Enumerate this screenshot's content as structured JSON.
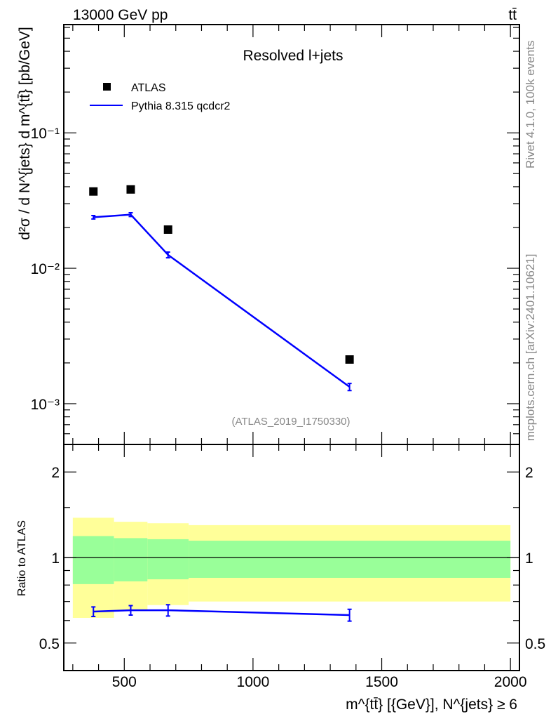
{
  "header": {
    "left": "13000 GeV pp",
    "right": "tt̄"
  },
  "side_text": {
    "rivet": "Rivet 4.1.0,  100k events",
    "mcplots": "mcplots.cern.ch [arXiv:2401.10621]"
  },
  "colors": {
    "data": "#000000",
    "mc": "#0000ff",
    "band_inner": "#99ff99",
    "band_outer": "#ffff99",
    "gray": "#888888"
  },
  "chart_data": [
    {
      "type": "scatter",
      "title": "Resolved l+jets",
      "analysis_id": "(ATLAS_2019_I1750330)",
      "ylabel": "d²σ / d N^{jets} d m^{tt̄} [pb/GeV]",
      "yscale": "log",
      "ylim": [
        0.0005,
        0.63
      ],
      "xlim": [
        265,
        2035
      ],
      "ytick_labels": [
        {
          "value": 0.1,
          "label": "10⁻¹"
        },
        {
          "value": 0.01,
          "label": "10⁻²"
        },
        {
          "value": 0.001,
          "label": "10⁻³"
        }
      ],
      "legend": {
        "placement": "top-left",
        "entries": [
          "ATLAS",
          "Pythia 8.315 qcdcr2"
        ]
      },
      "bins": [
        [
          300,
          460
        ],
        [
          460,
          590
        ],
        [
          590,
          750
        ],
        [
          750,
          2000
        ]
      ],
      "series": [
        {
          "name": "ATLAS",
          "style": "marker",
          "x": [
            380,
            525,
            670,
            1375
          ],
          "y": [
            0.0369,
            0.0382,
            0.0193,
            0.00212
          ]
        },
        {
          "name": "Pythia 8.315 qcdcr2",
          "style": "line",
          "x": [
            380,
            525,
            670,
            1375
          ],
          "y": [
            0.0238,
            0.0249,
            0.01256,
            0.00133
          ],
          "yerr": [
            0.0007,
            0.0008,
            0.0006,
            8e-05
          ]
        }
      ]
    },
    {
      "type": "line",
      "ylabel": "Ratio to ATLAS",
      "xlabel": "m^{tt̄} [{GeV}], N^{jets} ≥ 6",
      "yscale": "log",
      "ylim": [
        0.4,
        2.5
      ],
      "xlim": [
        265,
        2035
      ],
      "xticks": [
        500,
        1000,
        1500,
        2000
      ],
      "yticks": [
        {
          "value": 0.5,
          "label": "0.5"
        },
        {
          "value": 1,
          "label": "1"
        },
        {
          "value": 2,
          "label": "2"
        }
      ],
      "bins": [
        [
          300,
          460
        ],
        [
          460,
          590
        ],
        [
          590,
          750
        ],
        [
          750,
          2000
        ]
      ],
      "band_outer": {
        "lo": [
          0.613,
          0.653,
          0.68,
          0.7
        ],
        "hi": [
          1.38,
          1.336,
          1.32,
          1.3
        ]
      },
      "band_inner": {
        "lo": [
          0.806,
          0.824,
          0.838,
          0.848
        ],
        "hi": [
          1.19,
          1.17,
          1.16,
          1.146
        ]
      },
      "series": [
        {
          "name": "Pythia 8.315 qcdcr2",
          "x": [
            380,
            525,
            670,
            1375
          ],
          "y": [
            0.645,
            0.652,
            0.652,
            0.627
          ],
          "yerr": [
            0.025,
            0.025,
            0.03,
            0.03
          ]
        }
      ]
    }
  ]
}
